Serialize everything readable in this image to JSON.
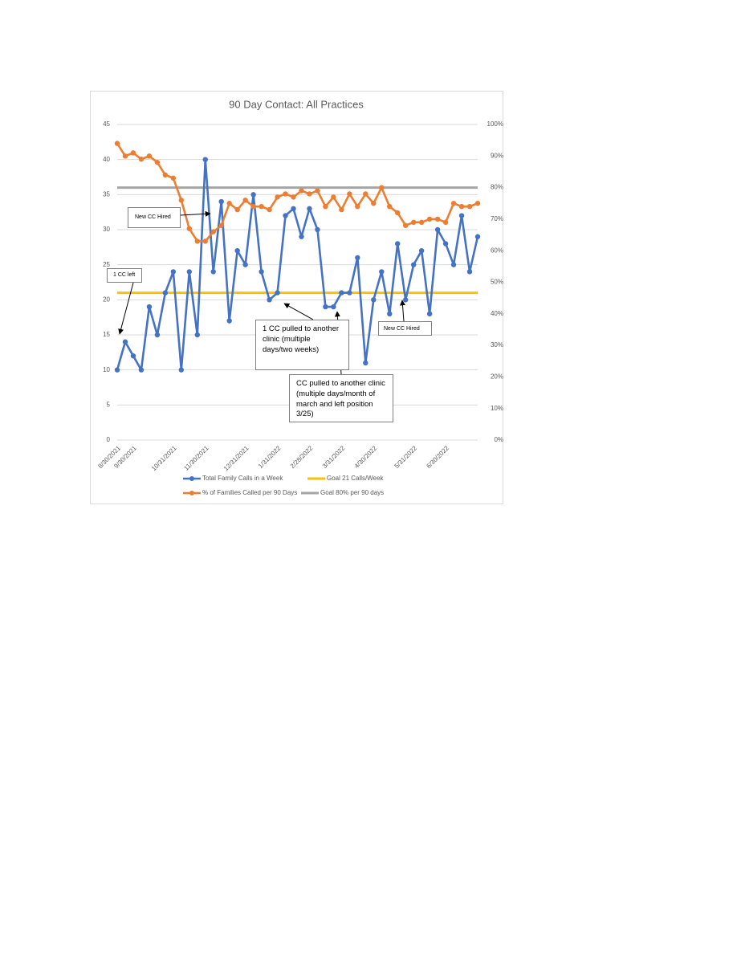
{
  "chart_data": {
    "type": "line",
    "title": "90 Day Contact: All Practices",
    "categories": [
      "8/30/2021",
      null,
      "9/30/2021",
      null,
      null,
      null,
      null,
      "10/31/2021",
      null,
      null,
      null,
      "11/30/2021",
      null,
      null,
      null,
      null,
      "12/31/2021",
      null,
      null,
      null,
      "1/31/2022",
      null,
      null,
      null,
      "2/28/2022",
      null,
      null,
      null,
      "3/31/2022",
      null,
      null,
      null,
      "4/30/2022",
      null,
      null,
      null,
      null,
      "5/31/2022",
      null,
      null,
      null,
      "6/30/2022",
      null,
      null,
      null,
      null
    ],
    "series": [
      {
        "name": "Total Family Calls in a Week",
        "color": "#4472c4",
        "marker": true,
        "values": [
          10,
          14,
          12,
          10,
          19,
          15,
          21,
          24,
          10,
          24,
          15,
          40,
          24,
          34,
          17,
          27,
          25,
          35,
          24,
          20,
          21,
          32,
          33,
          29,
          33,
          30,
          19,
          19,
          21,
          21,
          26,
          11,
          20,
          24,
          18,
          28,
          20,
          25,
          27,
          18,
          30,
          28,
          25,
          32,
          24,
          29
        ]
      },
      {
        "name": "Goal 21 Calls/Week",
        "color": "#ffc000",
        "marker": false,
        "values": [
          21,
          21,
          21,
          21,
          21,
          21,
          21,
          21,
          21,
          21,
          21,
          21,
          21,
          21,
          21,
          21,
          21,
          21,
          21,
          21,
          21,
          21,
          21,
          21,
          21,
          21,
          21,
          21,
          21,
          21,
          21,
          21,
          21,
          21,
          21,
          21,
          21,
          21,
          21,
          21,
          21,
          21,
          21,
          21,
          21,
          21
        ]
      },
      {
        "name": "% of Families Called per 90 Days",
        "color": "#ed7d31",
        "marker": true,
        "axis": "y2",
        "values": [
          94,
          90,
          91,
          89,
          90,
          88,
          84,
          83,
          76,
          67,
          63,
          63,
          66,
          68,
          75,
          73,
          76,
          74,
          74,
          73,
          77,
          78,
          77,
          79,
          78,
          79,
          74,
          77,
          73,
          78,
          74,
          78,
          75,
          80,
          74,
          72,
          68,
          69,
          69,
          70,
          70,
          69,
          75,
          74,
          74,
          75
        ]
      },
      {
        "name": "Goal 80% per 90 days",
        "color": "#a5a5a5",
        "marker": false,
        "axis": "y2",
        "values": [
          80,
          80,
          80,
          80,
          80,
          80,
          80,
          80,
          80,
          80,
          80,
          80,
          80,
          80,
          80,
          80,
          80,
          80,
          80,
          80,
          80,
          80,
          80,
          80,
          80,
          80,
          80,
          80,
          80,
          80,
          80,
          80,
          80,
          80,
          80,
          80,
          80,
          80,
          80,
          80,
          80,
          80,
          80,
          80,
          80,
          80
        ]
      }
    ],
    "ylim": [
      0,
      45
    ],
    "yticks": [
      0,
      5,
      10,
      15,
      20,
      25,
      30,
      35,
      40,
      45
    ],
    "y2lim": [
      0,
      100
    ],
    "y2ticks": [
      {
        "value": 0,
        "label": "0%"
      },
      {
        "value": 10,
        "label": "10%"
      },
      {
        "value": 20,
        "label": "20%"
      },
      {
        "value": 30,
        "label": "30%"
      },
      {
        "value": 40,
        "label": "40%"
      },
      {
        "value": 50,
        "label": "50%"
      },
      {
        "value": 60,
        "label": "60%"
      },
      {
        "value": 70,
        "label": "70%"
      },
      {
        "value": 80,
        "label": "80%"
      },
      {
        "value": 90,
        "label": "90%"
      },
      {
        "value": 100,
        "label": "100%"
      }
    ],
    "grid": true,
    "legend": "bottom",
    "annotations": [
      {
        "text": "New CC Hired"
      },
      {
        "text": "1 CC left"
      },
      {
        "text": "1 CC pulled to another clinic (multiple days/two weeks)"
      },
      {
        "text": "CC pulled to another clinic (multiple days/month of march and left position 3/25)"
      },
      {
        "text": "New CC Hired"
      }
    ]
  }
}
